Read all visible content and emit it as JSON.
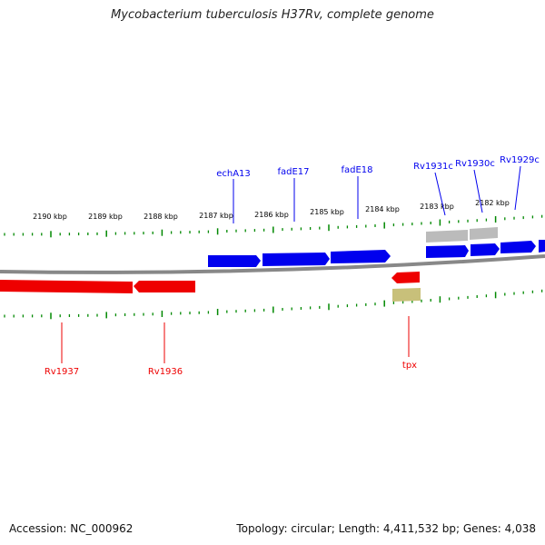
{
  "title": "Mycobacterium tuberculosis H37Rv, complete genome",
  "footer": {
    "accession": "Accession: NC_000962",
    "summary": "Topology: circular; Length: 4,411,532 bp; Genes: 4,038"
  },
  "colors": {
    "forward_gene": "#0000ee",
    "reverse_gene": "#ee0000",
    "other_gene": "#bbbbbb",
    "tick": "#008800",
    "backbone": "#888888",
    "rna": "#c8c07a"
  },
  "scale": {
    "unit": "kbp",
    "labels": [
      "2190 kbp",
      "2189 kbp",
      "2188 kbp",
      "2187 kbp",
      "2186 kbp",
      "2185 kbp",
      "2184 kbp",
      "2183 kbp",
      "2182 kbp"
    ]
  },
  "gene_labels": {
    "forward": [
      "echA13",
      "fadE17",
      "fadE18",
      "Rv1931c",
      "Rv1930c",
      "Rv1929c"
    ],
    "reverse": [
      "Rv1937",
      "Rv1936",
      "tpx"
    ]
  }
}
